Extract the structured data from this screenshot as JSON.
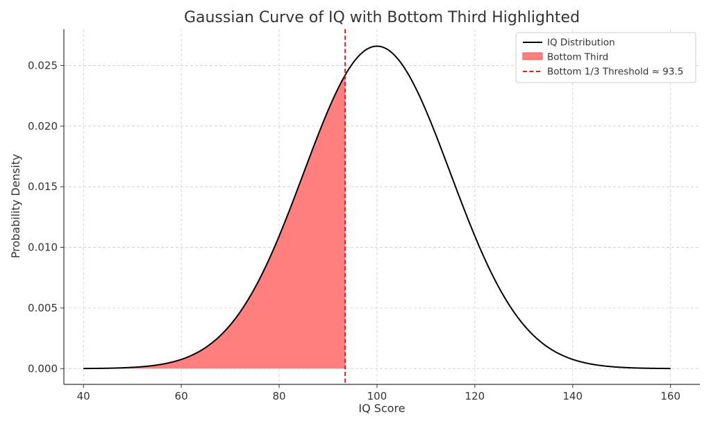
{
  "chart_data": {
    "type": "area",
    "title": "Gaussian Curve of IQ with Bottom Third Highlighted",
    "xlabel": "IQ Score",
    "ylabel": "Probability Density",
    "xlim": [
      36,
      166
    ],
    "ylim": [
      -0.0013,
      0.028
    ],
    "xticks": [
      40,
      60,
      80,
      100,
      120,
      140,
      160
    ],
    "xtick_labels": [
      "40",
      "60",
      "80",
      "100",
      "120",
      "140",
      "160"
    ],
    "yticks": [
      0,
      0.005,
      0.01,
      0.015,
      0.02,
      0.025
    ],
    "ytick_labels": [
      "0.000",
      "0.005",
      "0.010",
      "0.015",
      "0.020",
      "0.025"
    ],
    "grid": true,
    "legend_position": "top-right",
    "series": [
      {
        "name": "IQ Distribution",
        "kind": "line",
        "color": "#000000",
        "distribution": "normal",
        "mean": 100,
        "std": 15,
        "x": [
          40,
          45,
          50,
          55,
          60,
          65,
          70,
          75,
          80,
          85,
          90,
          93.5,
          95,
          100,
          105,
          110,
          115,
          120,
          125,
          130,
          135,
          140,
          145,
          150,
          155,
          160
        ],
        "y": [
          9e-06,
          3.2e-05,
          0.000103,
          0.000295,
          0.00076,
          0.001748,
          0.003599,
          0.006632,
          0.010934,
          0.016131,
          0.021297,
          0.024284,
          0.025159,
          0.026596,
          0.025159,
          0.021297,
          0.016131,
          0.010934,
          0.006632,
          0.003599,
          0.001748,
          0.00076,
          0.000295,
          0.000103,
          3.2e-05,
          9e-06
        ]
      },
      {
        "name": "Bottom Third",
        "kind": "area",
        "color": "#ff7f7f",
        "x_range": [
          40,
          93.5
        ]
      },
      {
        "name": "Bottom 1/3 Threshold ≈ 93.5",
        "kind": "vline",
        "color": "#e31a1c",
        "x": 93.5
      }
    ]
  }
}
